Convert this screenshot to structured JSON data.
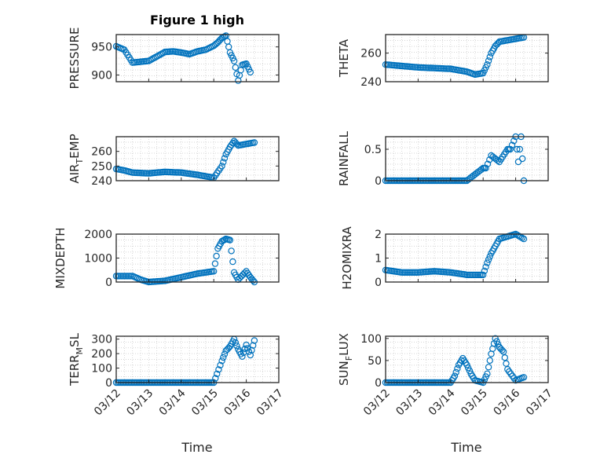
{
  "figure": {
    "title": "Figure 1 high",
    "xlabel": "Time"
  },
  "colors": {
    "marker": "#0072BD",
    "axis": "#262626",
    "grid": "#c8c8c8"
  },
  "chart_data": [
    {
      "type": "scatter",
      "ylabel": "PRESSURE",
      "ylim": [
        888,
        972
      ],
      "yticks": [
        900,
        950
      ],
      "grid": true,
      "x": [
        "03/12 00:00",
        "03/12 06:00",
        "03/12 12:00",
        "03/13 00:00",
        "03/13 06:00",
        "03/13 12:00",
        "03/13 18:00",
        "03/14 00:00",
        "03/14 06:00",
        "03/14 12:00",
        "03/14 18:00",
        "03/15 00:00",
        "03/15 03:00",
        "03/15 06:00",
        "03/15 09:00",
        "03/15 12:00",
        "03/15 15:00",
        "03/15 18:00",
        "03/15 21:00",
        "03/16 00:00",
        "03/16 03:00"
      ],
      "y": [
        951,
        945,
        922,
        925,
        933,
        941,
        942,
        940,
        937,
        942,
        945,
        952,
        958,
        966,
        970,
        940,
        925,
        890,
        918,
        920,
        905
      ]
    },
    {
      "type": "scatter",
      "ylabel": "THETA",
      "ylim": [
        240,
        273
      ],
      "yticks": [
        240,
        260
      ],
      "grid": true,
      "x": [
        "03/12 00:00",
        "03/12 12:00",
        "03/13 00:00",
        "03/13 12:00",
        "03/14 00:00",
        "03/14 12:00",
        "03/14 18:00",
        "03/15 00:00",
        "03/15 03:00",
        "03/15 06:00",
        "03/15 09:00",
        "03/15 12:00",
        "03/15 18:00",
        "03/16 00:00",
        "03/16 06:00"
      ],
      "y": [
        252,
        251,
        250,
        249.5,
        249,
        247,
        245,
        246,
        252,
        260,
        265,
        268,
        269,
        270,
        271
      ]
    },
    {
      "type": "scatter",
      "ylabel": "AIR_TEMP",
      "ylim": [
        240,
        270
      ],
      "yticks": [
        240,
        250,
        260
      ],
      "grid": true,
      "x": [
        "03/12 00:00",
        "03/12 06:00",
        "03/12 12:00",
        "03/13 00:00",
        "03/13 12:00",
        "03/14 00:00",
        "03/14 12:00",
        "03/14 18:00",
        "03/15 00:00",
        "03/15 06:00",
        "03/15 09:00",
        "03/15 12:00",
        "03/15 15:00",
        "03/15 18:00",
        "03/16 00:00",
        "03/16 06:00"
      ],
      "y": [
        248,
        247,
        245.5,
        245,
        246,
        245.5,
        244,
        243,
        242,
        250,
        258,
        263,
        267,
        264,
        265,
        266
      ]
    },
    {
      "type": "scatter",
      "ylabel": "RAINFALL",
      "ylim": [
        0,
        0.7
      ],
      "yticks": [
        0,
        0.5
      ],
      "grid": true,
      "x": [
        "03/12 00:00",
        "03/12 12:00",
        "03/13 00:00",
        "03/13 12:00",
        "03/14 00:00",
        "03/14 12:00",
        "03/15 00:00",
        "03/15 02:00",
        "03/15 06:00",
        "03/15 12:00",
        "03/15 18:00",
        "03/15 20:00",
        "03/16 00:00",
        "03/16 02:00",
        "03/16 04:00",
        "03/16 06:00"
      ],
      "y": [
        0,
        0,
        0,
        0,
        0,
        0,
        0.2,
        0.2,
        0.4,
        0.3,
        0.5,
        0.5,
        0.7,
        0.3,
        0.7,
        0
      ]
    },
    {
      "type": "scatter",
      "ylabel": "MIXDEPTH",
      "ylim": [
        0,
        2000
      ],
      "yticks": [
        0,
        1000,
        2000
      ],
      "grid": true,
      "x": [
        "03/12 00:00",
        "03/12 12:00",
        "03/12 18:00",
        "03/13 00:00",
        "03/13 12:00",
        "03/14 00:00",
        "03/14 12:00",
        "03/14 18:00",
        "03/15 00:00",
        "03/15 03:00",
        "03/15 06:00",
        "03/15 09:00",
        "03/15 12:00",
        "03/15 15:00",
        "03/15 18:00",
        "03/16 00:00",
        "03/16 03:00",
        "03/16 06:00"
      ],
      "y": [
        250,
        250,
        100,
        0,
        50,
        200,
        350,
        400,
        450,
        1400,
        1700,
        1800,
        1750,
        400,
        100,
        450,
        200,
        0
      ]
    },
    {
      "type": "scatter",
      "ylabel": "H2OMIXRA",
      "ylim": [
        0,
        2
      ],
      "yticks": [
        0,
        1,
        2
      ],
      "grid": true,
      "x": [
        "03/12 00:00",
        "03/12 12:00",
        "03/13 00:00",
        "03/13 12:00",
        "03/14 00:00",
        "03/14 12:00",
        "03/15 00:00",
        "03/15 03:00",
        "03/15 06:00",
        "03/15 09:00",
        "03/15 12:00",
        "03/15 18:00",
        "03/16 00:00",
        "03/16 06:00"
      ],
      "y": [
        0.5,
        0.4,
        0.4,
        0.45,
        0.4,
        0.3,
        0.3,
        0.8,
        1.2,
        1.5,
        1.8,
        1.9,
        2,
        1.8
      ]
    },
    {
      "type": "scatter",
      "ylabel": "TERR_MSL",
      "ylim": [
        0,
        320
      ],
      "yticks": [
        0,
        100,
        200,
        300
      ],
      "grid": true,
      "x": [
        "03/12 00:00",
        "03/12 12:00",
        "03/13 00:00",
        "03/13 12:00",
        "03/14 00:00",
        "03/14 12:00",
        "03/15 00:00",
        "03/15 06:00",
        "03/15 09:00",
        "03/15 12:00",
        "03/15 15:00",
        "03/15 18:00",
        "03/15 21:00",
        "03/16 00:00",
        "03/16 03:00",
        "03/16 06:00"
      ],
      "y": [
        0,
        0,
        0,
        0,
        0,
        0,
        0,
        150,
        220,
        250,
        300,
        230,
        180,
        260,
        190,
        290
      ]
    },
    {
      "type": "scatter",
      "ylabel": "SUN_FLUX",
      "ylim": [
        0,
        105
      ],
      "yticks": [
        0,
        50,
        100
      ],
      "grid": true,
      "x": [
        "03/12 00:00",
        "03/12 12:00",
        "03/13 00:00",
        "03/13 12:00",
        "03/14 00:00",
        "03/14 03:00",
        "03/14 06:00",
        "03/14 09:00",
        "03/14 12:00",
        "03/14 15:00",
        "03/14 18:00",
        "03/15 00:00",
        "03/15 03:00",
        "03/15 06:00",
        "03/15 09:00",
        "03/15 12:00",
        "03/15 15:00",
        "03/15 18:00",
        "03/16 00:00",
        "03/16 06:00"
      ],
      "y": [
        0,
        0,
        0,
        0,
        0,
        15,
        40,
        55,
        40,
        20,
        5,
        0,
        20,
        65,
        100,
        80,
        70,
        30,
        5,
        12
      ]
    }
  ],
  "x_axis": {
    "range": [
      "03/12 00:00",
      "03/17 00:00"
    ],
    "ticks": [
      "03/12",
      "03/13",
      "03/14",
      "03/15",
      "03/16",
      "03/17"
    ],
    "tick_values": [
      "03/12 00:00",
      "03/13 00:00",
      "03/14 00:00",
      "03/15 00:00",
      "03/16 00:00",
      "03/17 00:00"
    ]
  }
}
